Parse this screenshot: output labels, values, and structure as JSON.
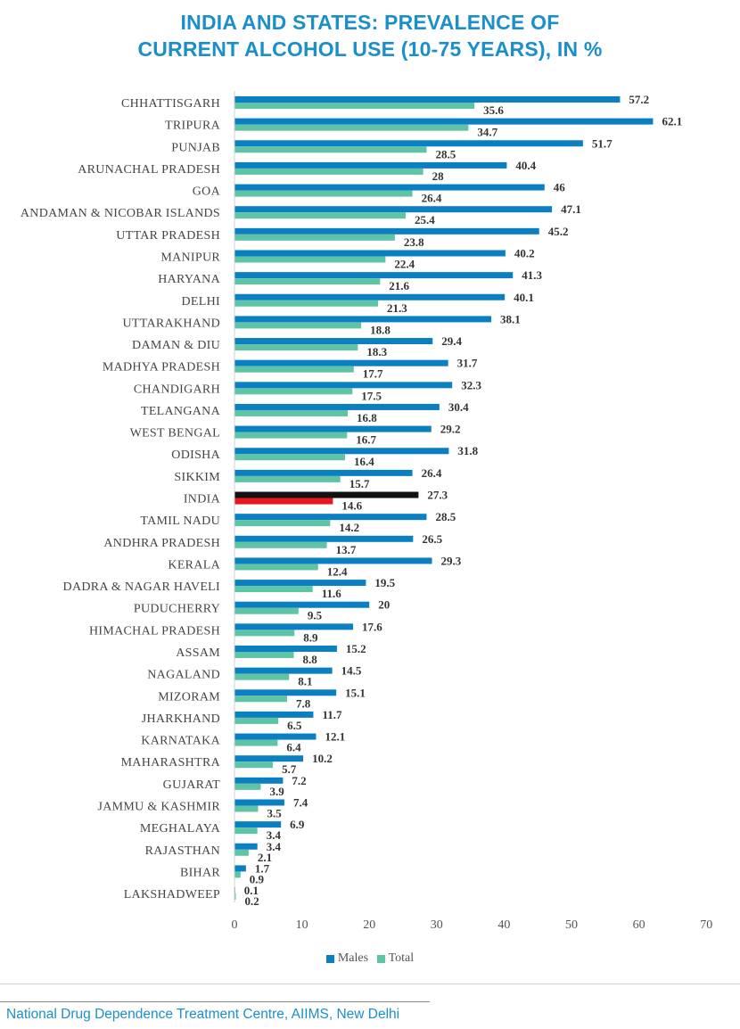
{
  "title": {
    "line1": "INDIA AND STATES: PREVALENCE OF",
    "line2": "CURRENT ALCOHOL USE (10-75 YEARS), IN %"
  },
  "colors": {
    "males": "#0a7fc1",
    "total": "#5fc4a6",
    "india_males": "#111111",
    "india_total": "#e8161c"
  },
  "chart_data": {
    "type": "bar",
    "orientation": "horizontal",
    "title": "INDIA AND STATES: PREVALENCE OF CURRENT ALCOHOL USE (10-75 YEARS), IN %",
    "categories": [
      "CHHATTISGARH",
      "TRIPURA",
      "PUNJAB",
      "ARUNACHAL PRADESH",
      "GOA",
      "ANDAMAN & NICOBAR ISLANDS",
      "UTTAR PRADESH",
      "MANIPUR",
      "HARYANA",
      "DELHI",
      "UTTARAKHAND",
      "DAMAN & DIU",
      "MADHYA PRADESH",
      "CHANDIGARH",
      "TELANGANA",
      "WEST BENGAL",
      "ODISHA",
      "SIKKIM",
      "INDIA",
      "TAMIL NADU",
      "ANDHRA PRADESH",
      "KERALA",
      "DADRA & NAGAR HAVELI",
      "PUDUCHERRY",
      "HIMACHAL PRADESH",
      "ASSAM",
      "NAGALAND",
      "MIZORAM",
      "JHARKHAND",
      "KARNATAKA",
      "MAHARASHTRA",
      "GUJARAT",
      "JAMMU & KASHMIR",
      "MEGHALAYA",
      "RAJASTHAN",
      "BIHAR",
      "LAKSHADWEEP"
    ],
    "series": [
      {
        "name": "Males",
        "values": [
          57.2,
          62.1,
          51.7,
          40.4,
          46,
          47.1,
          45.2,
          40.2,
          41.3,
          40.1,
          38.1,
          29.4,
          31.7,
          32.3,
          30.4,
          29.2,
          31.8,
          26.4,
          27.3,
          28.5,
          26.5,
          29.3,
          19.5,
          20,
          17.6,
          15.2,
          14.5,
          15.1,
          11.7,
          12.1,
          10.2,
          7.2,
          7.4,
          6.9,
          3.4,
          1.7,
          0.1
        ]
      },
      {
        "name": "Total",
        "values": [
          35.6,
          34.7,
          28.5,
          28,
          26.4,
          25.4,
          23.8,
          22.4,
          21.6,
          21.3,
          18.8,
          18.3,
          17.7,
          17.5,
          16.8,
          16.7,
          16.4,
          15.7,
          14.6,
          14.2,
          13.7,
          12.4,
          11.6,
          9.5,
          8.9,
          8.8,
          8.1,
          7.8,
          6.5,
          6.4,
          5.7,
          3.9,
          3.5,
          3.4,
          2.1,
          0.9,
          0.2
        ]
      }
    ],
    "highlight_category": "INDIA",
    "xlim": [
      0,
      70
    ],
    "x_ticks": [
      0,
      10,
      20,
      30,
      40,
      50,
      60,
      70
    ],
    "grid": false,
    "legend": [
      "Males",
      "Total"
    ],
    "legend_position": "bottom"
  },
  "legend": {
    "males": "Males",
    "total": "Total"
  },
  "source": "National Drug Dependence Treatment Centre, AIIMS, New Delhi"
}
